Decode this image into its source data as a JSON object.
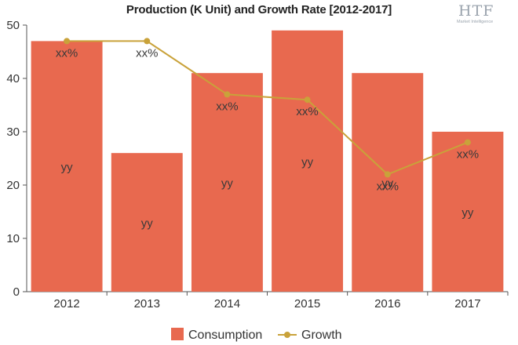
{
  "title": "Production (K Unit) and Growth Rate [2012-2017]",
  "logo": {
    "main": "HTF",
    "sub": "Market Intelligence"
  },
  "chart_data": {
    "type": "bar",
    "title": "Production (K Unit) and Growth Rate [2012-2017]",
    "categories": [
      "2012",
      "2013",
      "2014",
      "2015",
      "2016",
      "2017"
    ],
    "ylim": [
      0,
      50
    ],
    "yticks": [
      0,
      10,
      20,
      30,
      40,
      50
    ],
    "grid": false,
    "legend_position": "bottom",
    "series": [
      {
        "name": "Consumption",
        "kind": "bar",
        "color": "#e8694f",
        "values": [
          47,
          26,
          41,
          49,
          41,
          30
        ],
        "labels": [
          "yy",
          "yy",
          "yy",
          "yy",
          "yy",
          "yy"
        ]
      },
      {
        "name": "Growth",
        "kind": "line",
        "color": "#c9a23a",
        "values": [
          47,
          47,
          37,
          36,
          22,
          28
        ],
        "labels": [
          "xx%",
          "xx%",
          "xx%",
          "xx%",
          "xx%",
          "xx%"
        ]
      }
    ]
  }
}
